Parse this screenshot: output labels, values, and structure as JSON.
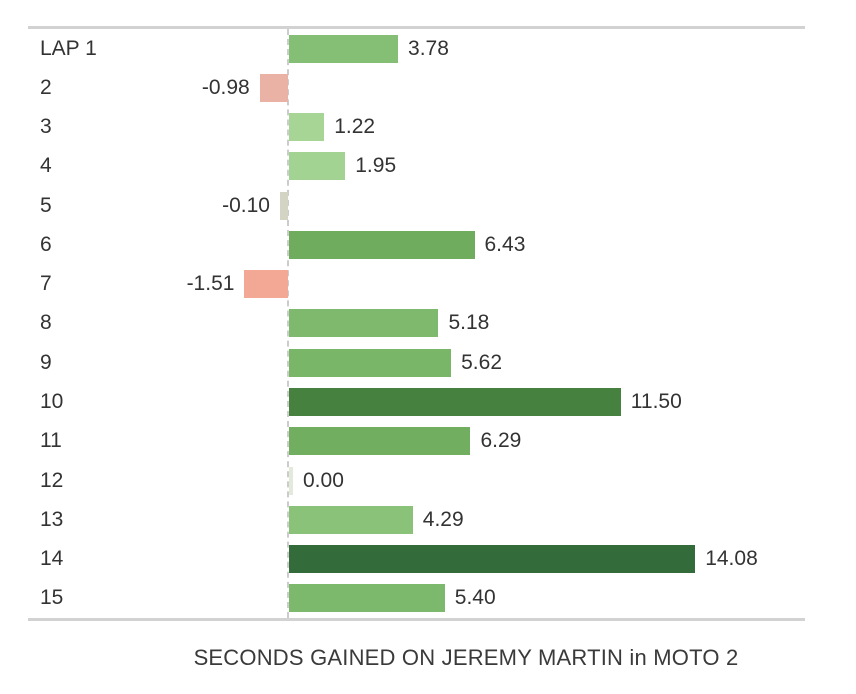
{
  "caption": "SECONDS GAINED ON JEREMY MARTIN in MOTO 2",
  "colors": {
    "border": "#d2d2d2",
    "zero_axis": "#cccccc",
    "text": "#333333"
  },
  "chart_data": {
    "type": "bar",
    "orientation": "horizontal",
    "title": "SECONDS GAINED ON JEREMY MARTIN in MOTO 2",
    "xlabel": "SECONDS GAINED ON JEREMY MARTIN in MOTO 2",
    "ylabel": "LAP",
    "xlim": [
      -9,
      17.9
    ],
    "grid": false,
    "legend": "none",
    "zero_line": "dashed-vertical",
    "categories": [
      "LAP 1",
      "2",
      "3",
      "4",
      "5",
      "6",
      "7",
      "8",
      "9",
      "10",
      "11",
      "12",
      "13",
      "14",
      "15"
    ],
    "values": [
      3.78,
      -0.98,
      1.22,
      1.95,
      -0.1,
      6.43,
      -1.51,
      5.18,
      5.62,
      11.5,
      6.29,
      0.0,
      4.29,
      14.08,
      5.4
    ],
    "value_labels": [
      "3.78",
      "-0.98",
      "1.22",
      "1.95",
      "-0.10",
      "6.43",
      "-1.51",
      "5.18",
      "5.62",
      "11.50",
      "6.29",
      "0.00",
      "4.29",
      "14.08",
      "5.40"
    ],
    "bar_colors": [
      "#85bf75",
      "#e9b2a4",
      "#a6d595",
      "#a3d392",
      "#d4d4c4",
      "#6fac5d",
      "#f3a795",
      "#7eb96d",
      "#7ab668",
      "#47813f",
      "#71ae5f",
      "#e3e9db",
      "#8bc27a",
      "#336b3b",
      "#7db96c"
    ],
    "color_scheme": "green shades darker with larger positive values; salmon for negative values; pale gray-green near zero"
  }
}
